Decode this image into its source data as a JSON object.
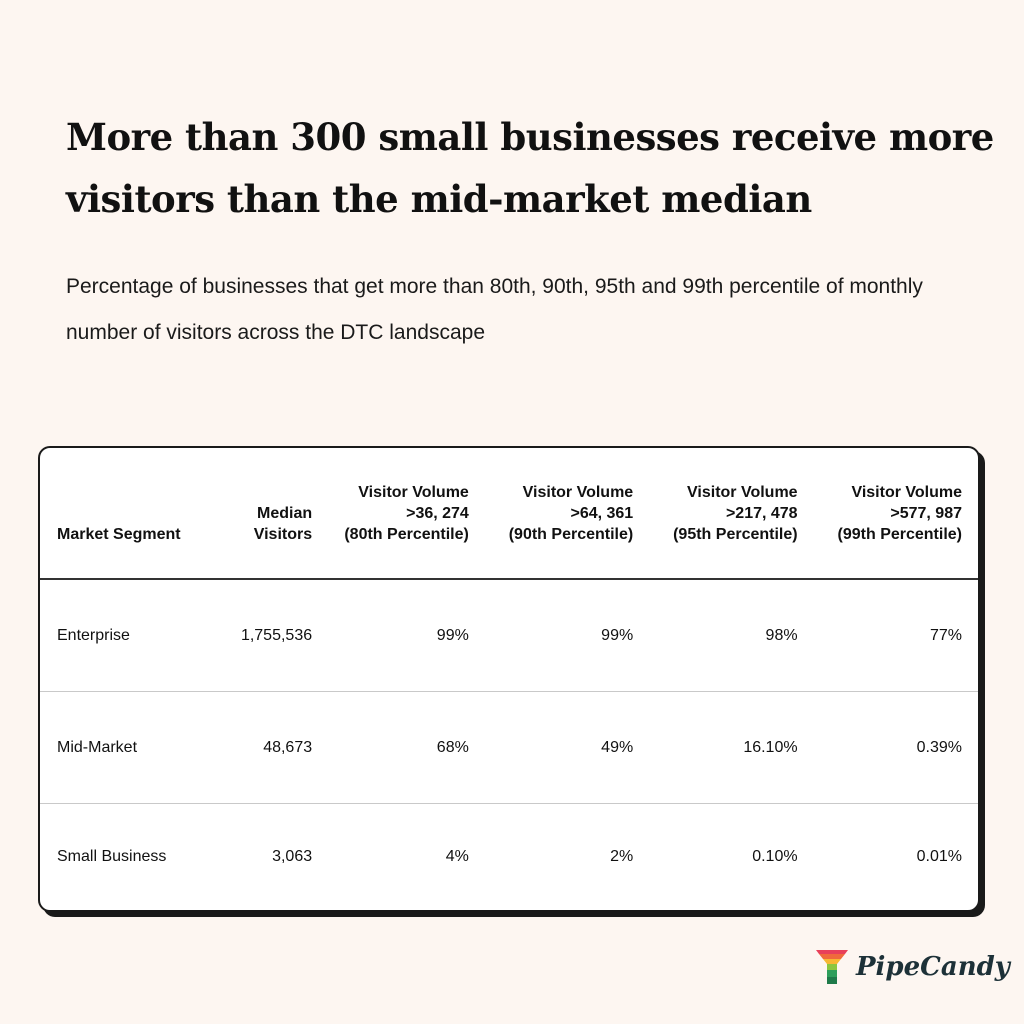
{
  "title": "More than 300 small businesses receive more visitors than the mid-market median",
  "subtitle": "Percentage of businesses that get more than 80th, 90th, 95th and 99th percentile of monthly number of visitors across the DTC landscape",
  "table": {
    "headers": [
      [
        "Market Segment"
      ],
      [
        "Median",
        "Visitors"
      ],
      [
        "Visitor Volume",
        ">36, 274",
        "(80th Percentile)"
      ],
      [
        "Visitor Volume",
        ">64, 361",
        "(90th Percentile)"
      ],
      [
        "Visitor Volume",
        ">217, 478",
        "(95th Percentile)"
      ],
      [
        "Visitor Volume",
        ">577, 987",
        "(99th Percentile)"
      ]
    ],
    "rows": [
      [
        "Enterprise",
        "1,755,536",
        "99%",
        "99%",
        "98%",
        "77%"
      ],
      [
        "Mid-Market",
        "48,673",
        "68%",
        "49%",
        "16.10%",
        "0.39%"
      ],
      [
        "Small Business",
        "3,063",
        "4%",
        "2%",
        "0.10%",
        "0.01%"
      ]
    ]
  },
  "brand": {
    "name": "PipeCandy",
    "icon": "funnel-logo-icon"
  }
}
